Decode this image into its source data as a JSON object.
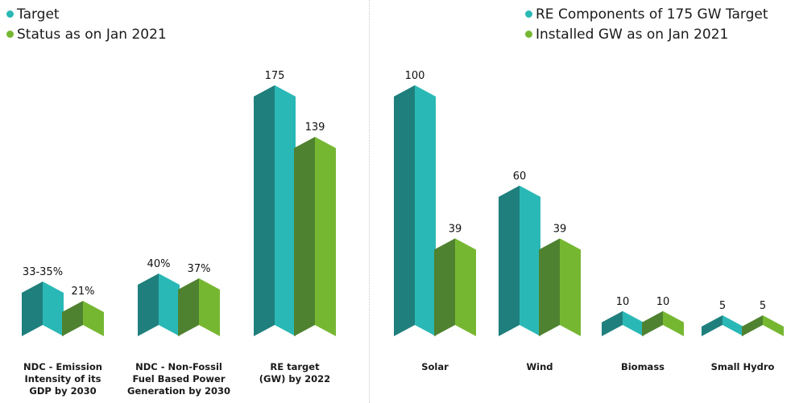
{
  "colors": {
    "teal_dark": "#1f7f7d",
    "teal_light": "#2ab8b6",
    "green_dark": "#4f8230",
    "green_light": "#76b732"
  },
  "chart_data": [
    {
      "type": "bar",
      "categories": [
        "NDC - Emission Intensity of its GDP by 2030",
        "NDC - Non-Fossil Fuel Based Power Generation by 2030",
        "RE target (GW) by 2022"
      ],
      "series": [
        {
          "name": "Target",
          "values": [
            34,
            40,
            175
          ],
          "labels": [
            "33-35%",
            "40%",
            "175"
          ]
        },
        {
          "name": "Status as on Jan 2021",
          "values": [
            21,
            37,
            139
          ],
          "labels": [
            "21%",
            "37%",
            "139"
          ]
        }
      ],
      "legend": "top-left",
      "grid": false
    },
    {
      "type": "bar",
      "categories": [
        "Solar",
        "Wind",
        "Biomass",
        "Small Hydro"
      ],
      "series": [
        {
          "name": "RE Components of 175 GW Target",
          "values": [
            100,
            60,
            10,
            5
          ],
          "labels": [
            "100",
            "60",
            "10",
            "5"
          ]
        },
        {
          "name": "Installed GW as on Jan 2021",
          "values": [
            39,
            39,
            10,
            5
          ],
          "labels": [
            "39",
            "39",
            "10",
            "5"
          ]
        }
      ],
      "legend": "top-right",
      "grid": false
    }
  ],
  "category_lines": [
    [
      "NDC - Emission",
      "Intensity of its",
      "GDP by 2030"
    ],
    [
      "NDC - Non-Fossil",
      "Fuel Based Power",
      "Generation by 2030"
    ],
    [
      "RE target",
      "(GW) by 2022"
    ],
    [
      "Solar"
    ],
    [
      "Wind"
    ],
    [
      "Biomass"
    ],
    [
      "Small Hydro"
    ]
  ]
}
